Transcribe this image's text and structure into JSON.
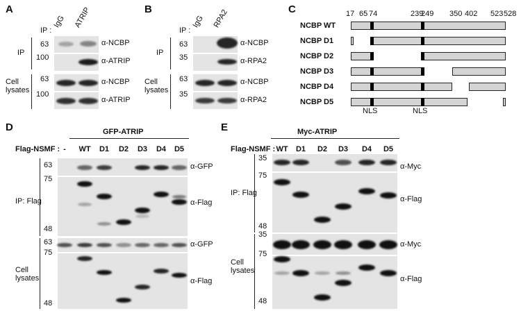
{
  "panels": {
    "a": {
      "label": "A",
      "ip_prefix": "IP :",
      "lanes": [
        "IgG",
        "ATRIP"
      ],
      "groups": [
        "IP",
        "Cell lysates"
      ],
      "markers": [
        63,
        100,
        63,
        100
      ],
      "antibodies": [
        "α-NCBP",
        "α-ATRIP",
        "α-NCBP",
        "α-ATRIP"
      ]
    },
    "b": {
      "label": "B",
      "ip_prefix": "IP :",
      "lanes": [
        "IgG",
        "RPA2"
      ],
      "groups": [
        "IP",
        "Cell lysates"
      ],
      "markers": [
        63,
        35,
        63,
        35
      ],
      "antibodies": [
        "α-NCBP",
        "α-RPA2",
        "α-NCBP",
        "α-RPA2"
      ]
    },
    "c": {
      "label": "C",
      "positions": [
        17,
        65,
        74,
        239,
        249,
        350,
        402,
        523,
        528
      ],
      "constructs": [
        "NCBP WT",
        "NCBP D1",
        "NCBP D2",
        "NCBP D3",
        "NCBP D4",
        "NCBP D5"
      ],
      "motifs": [
        "NLS",
        "NLS"
      ]
    },
    "d": {
      "label": "D",
      "construct": "GFP-ATRIP",
      "lane_prefix": "Flag-NSMF :",
      "lanes": [
        "-",
        "WT",
        "D1",
        "D2",
        "D3",
        "D4",
        "D5"
      ],
      "groups": [
        "IP: Flag",
        "Cell lysates"
      ],
      "markers": [
        63,
        75,
        48,
        63,
        75,
        48
      ],
      "antibodies": [
        "α-GFP",
        "α-Flag",
        "α-GFP",
        "α-Flag"
      ]
    },
    "e": {
      "label": "E",
      "construct": "Myc-ATRIP",
      "lane_prefix": "Flag-NSMF :",
      "lanes": [
        "WT",
        "D1",
        "D2",
        "D3",
        "D4",
        "D5"
      ],
      "groups": [
        "IP: Flag",
        "Cell lysates"
      ],
      "markers": [
        35,
        75,
        48,
        35,
        75,
        48
      ],
      "antibodies": [
        "α-Myc",
        "α-Flag",
        "α-Myc",
        "α-Flag"
      ]
    }
  }
}
